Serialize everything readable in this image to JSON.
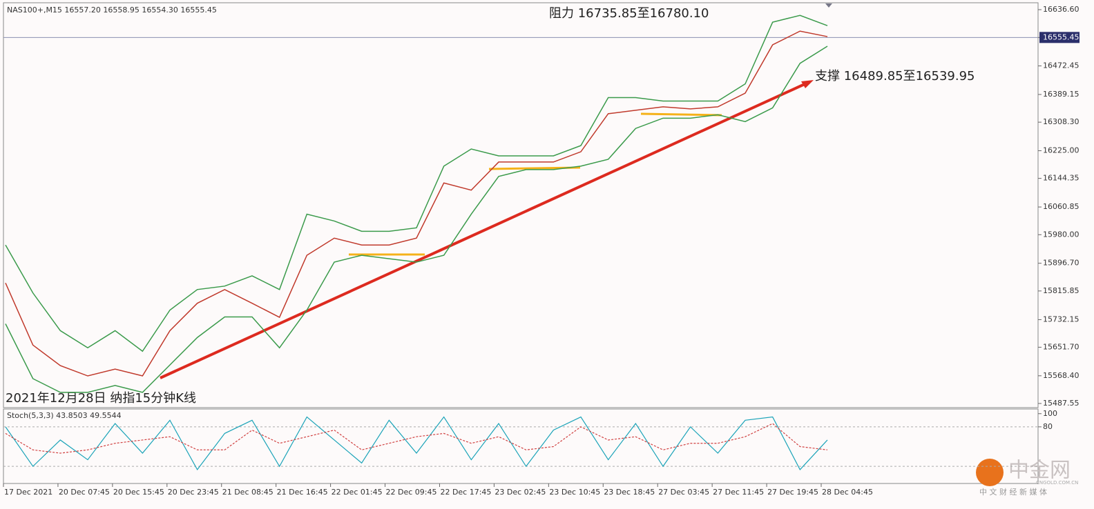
{
  "chart_data": {
    "type": "line",
    "header": "NAS100+,M15  16557.20 16558.95 16554.30 16555.45",
    "annotations": [
      "阻力 16735.85至16780.10",
      "支撑 16489.85至16539.95",
      "2021年12月28日 纳指15分钟K线"
    ],
    "x_labels": [
      "17 Dec 2021",
      "20 Dec 07:45",
      "20 Dec 15:45",
      "20 Dec 23:45",
      "21 Dec 08:45",
      "21 Dec 16:45",
      "22 Dec 01:45",
      "22 Dec 09:45",
      "22 Dec 17:45",
      "23 Dec 02:45",
      "23 Dec 10:45",
      "23 Dec 18:45",
      "27 Dec 03:45",
      "27 Dec 11:45",
      "27 Dec 19:45",
      "28 Dec 04:45"
    ],
    "series": [
      {
        "color": "#c0392b",
        "values": [
          15839,
          15658,
          15598,
          15568,
          15588,
          15568,
          15700,
          15780,
          15820,
          15780,
          15739,
          15920,
          15970,
          15950,
          15950,
          15970,
          16131,
          16110,
          16192,
          16192,
          16192,
          16222,
          16333,
          16343,
          16353,
          16347,
          16353,
          16393,
          16534,
          16574,
          16558
        ]
      },
      {
        "color": "#3a9a4a",
        "values": [
          15950,
          15810,
          15700,
          15650,
          15700,
          15640,
          15760,
          15820,
          15830,
          15860,
          15820,
          16040,
          16020,
          15990,
          15990,
          16000,
          16180,
          16230,
          16210,
          16210,
          16210,
          16240,
          16380,
          16380,
          16370,
          16370,
          16370,
          16420,
          16600,
          16620,
          16590
        ]
      },
      {
        "color": "#3a9a4a",
        "values": [
          15720,
          15560,
          15520,
          15520,
          15540,
          15520,
          15600,
          15680,
          15740,
          15740,
          15650,
          15760,
          15900,
          15920,
          15910,
          15900,
          15920,
          16040,
          16150,
          16170,
          16170,
          16180,
          16200,
          16290,
          16320,
          16320,
          16330,
          16310,
          16350,
          16480,
          16530
        ]
      }
    ],
    "last_price": 16555.45,
    "ylim": [
      15477.5,
      16654.7
    ],
    "yticks": [
      {
        "value": 16636.6,
        "label": "16636.60"
      },
      16555.45,
      16472.45,
      16389.15,
      {
        "value": 16308.3,
        "label": "16308.30"
      },
      {
        "value": 16225,
        "label": "16225.00"
      },
      16144.35,
      16060.85,
      {
        "value": 15980,
        "label": "15980.00"
      },
      {
        "value": 15896.7,
        "label": "15896.70"
      },
      15815.85,
      15732.15,
      {
        "value": 15651.7,
        "label": "15651.70"
      },
      {
        "value": 15568.4,
        "label": "15568.40"
      },
      15487.55
    ],
    "stoch": {
      "label": "Stoch(5,3,3) 43.8503 49.5544",
      "ylim": [
        -5,
        105
      ],
      "yticks": [
        100,
        80
      ],
      "levels": [
        80,
        20
      ],
      "series": [
        {
          "color": "#1aa3b8",
          "values": [
            80,
            20,
            60,
            30,
            85,
            40,
            90,
            15,
            70,
            90,
            20,
            95,
            60,
            25,
            90,
            40,
            95,
            30,
            85,
            20,
            75,
            95,
            30,
            85,
            20,
            80,
            40,
            90,
            95,
            15,
            60
          ]
        },
        {
          "color": "#d04040",
          "values": [
            70,
            45,
            40,
            45,
            55,
            60,
            65,
            45,
            45,
            75,
            55,
            65,
            75,
            45,
            55,
            65,
            70,
            55,
            65,
            45,
            50,
            80,
            60,
            65,
            45,
            55,
            55,
            65,
            85,
            50,
            45
          ]
        }
      ]
    },
    "watermark": [
      "中金网",
      "CNGOLD.COM.CN",
      "中 文 财 经 新 媒 体"
    ]
  }
}
